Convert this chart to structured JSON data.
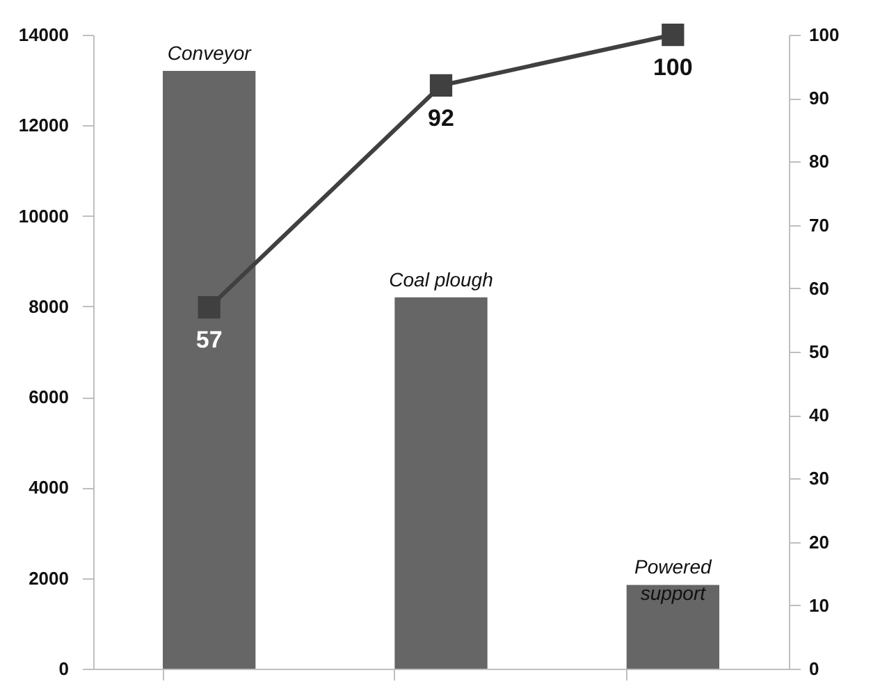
{
  "chart_data": {
    "type": "bar",
    "categories": [
      "Conveyor",
      "Coal plough",
      "Powered support"
    ],
    "series": [
      {
        "color": "#666666",
        "values": [
          13200,
          8200,
          1850
        ]
      },
      {
        "type": "line",
        "axis": "y2",
        "color": "#404040",
        "values": [
          57,
          92,
          100
        ],
        "value_labels": [
          "57",
          "92",
          "100"
        ]
      }
    ],
    "ylim": [
      0,
      14000
    ],
    "yticks": [
      0,
      2000,
      4000,
      6000,
      8000,
      10000,
      12000,
      14000
    ],
    "y2lim": [
      0,
      100
    ],
    "y2ticks": [
      0,
      10,
      20,
      30,
      40,
      50,
      60,
      70,
      80,
      90,
      100
    ],
    "grid": false,
    "marker": "square",
    "line_style": "solid"
  }
}
